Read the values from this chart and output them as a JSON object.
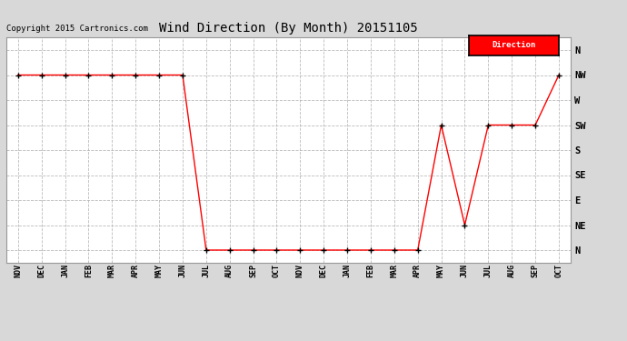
{
  "title": "Wind Direction (By Month) 20151105",
  "copyright": "Copyright 2015 Cartronics.com",
  "legend_label": "Direction",
  "legend_bg": "#ff0000",
  "legend_text_color": "#ffffff",
  "x_labels": [
    "NOV",
    "DEC",
    "JAN",
    "FEB",
    "MAR",
    "APR",
    "MAY",
    "JUN",
    "JUL",
    "AUG",
    "SEP",
    "OCT",
    "NOV",
    "DEC",
    "JAN",
    "FEB",
    "MAR",
    "APR",
    "MAY",
    "JUN",
    "JUL",
    "AUG",
    "SEP",
    "OCT"
  ],
  "y_labels": [
    "N",
    "NE",
    "E",
    "SE",
    "S",
    "SW",
    "W",
    "NW",
    "N"
  ],
  "y_values": [
    0,
    1,
    2,
    3,
    4,
    5,
    6,
    7,
    8
  ],
  "data_y": [
    7,
    7,
    7,
    7,
    7,
    7,
    7,
    7,
    0,
    0,
    0,
    0,
    0,
    0,
    0,
    0,
    0,
    0,
    5,
    1,
    5,
    5,
    5,
    7
  ],
  "line_color": "#ff0000",
  "marker_color": "#000000",
  "bg_color": "#d8d8d8",
  "plot_bg_color": "#ffffff",
  "grid_color": "#aaaaaa",
  "title_fontsize": 10,
  "copyright_fontsize": 6.5,
  "tick_fontsize": 6,
  "ylabel_fontsize": 7.5
}
